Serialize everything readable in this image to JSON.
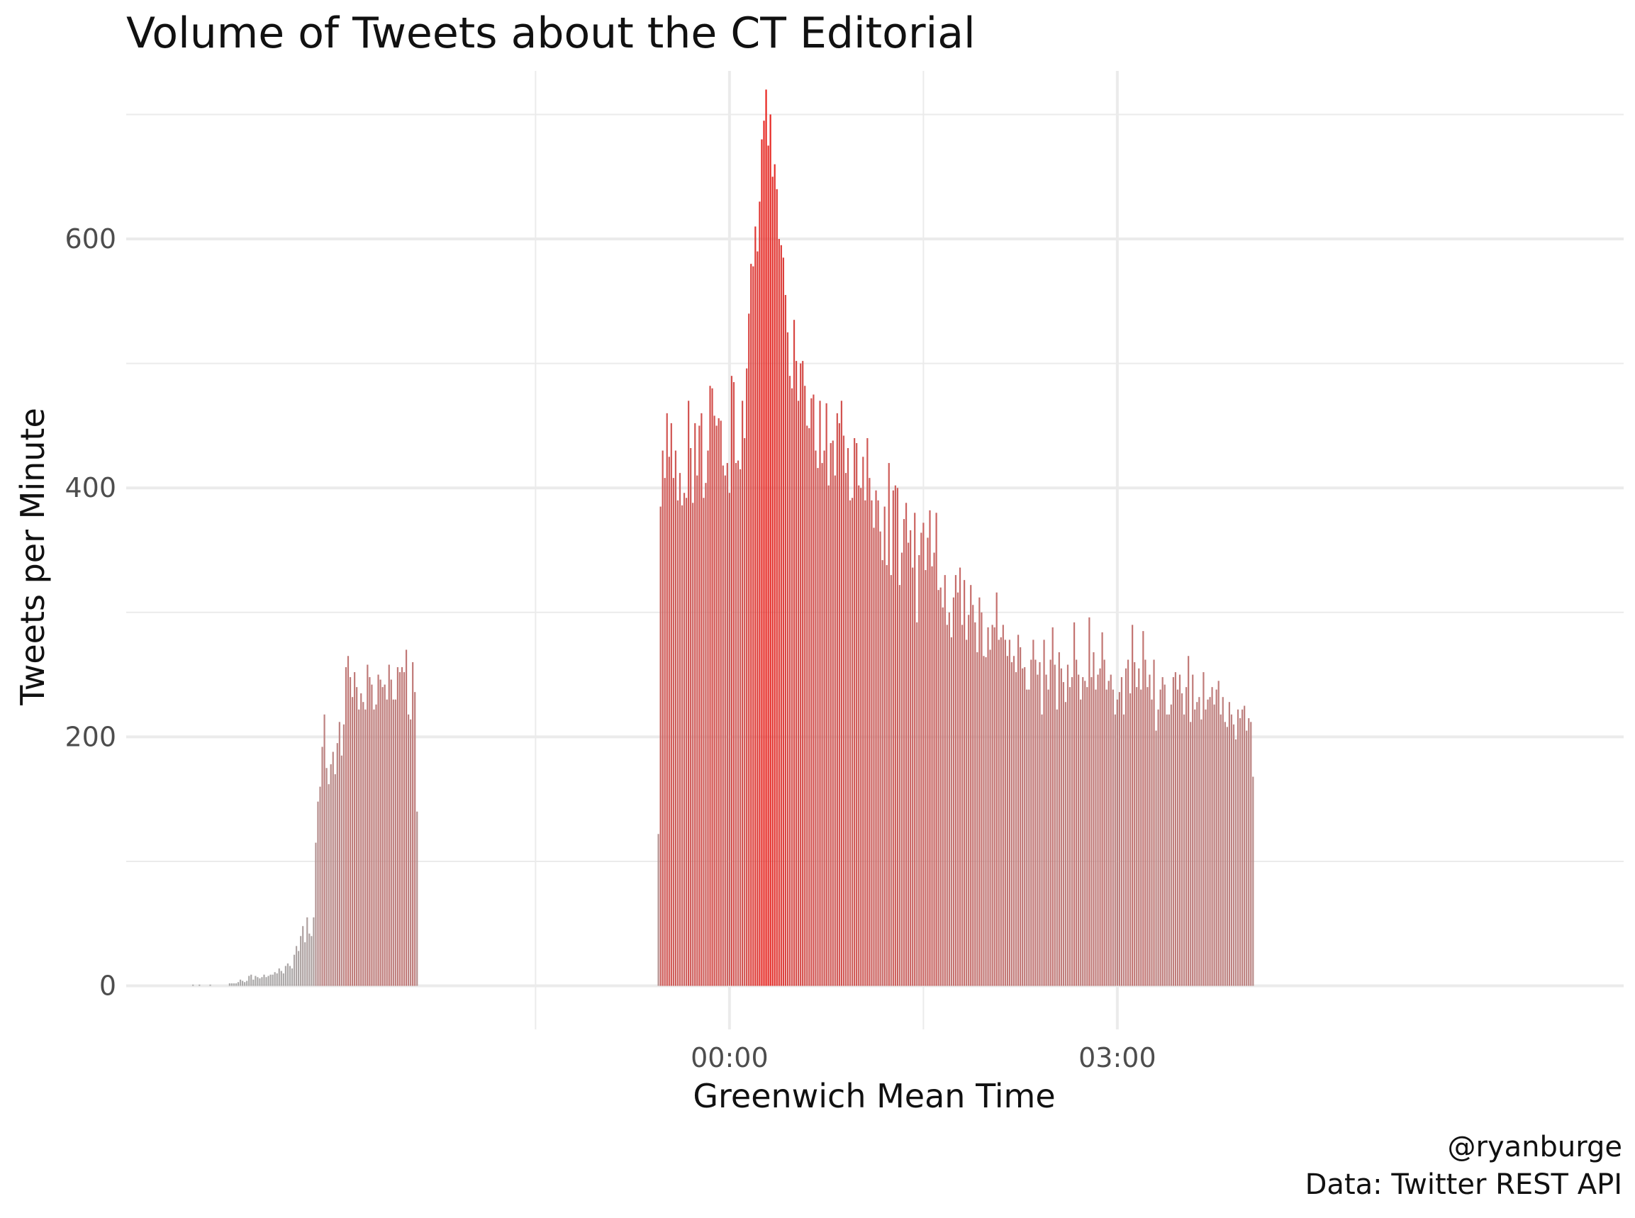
{
  "chart_data": {
    "type": "bar",
    "title": "Volume of Tweets about the CT Editorial",
    "xlabel": "Greenwich Mean Time",
    "ylabel": "Tweets per Minute",
    "x_unit": "minutes relative to 00:00 GMT",
    "x_range": [
      -280,
      415
    ],
    "ylim": [
      -35,
      735
    ],
    "y_ticks": [
      0,
      200,
      400,
      600
    ],
    "x_ticks": [
      {
        "minute": 0,
        "label": "00:00"
      },
      {
        "minute": 180,
        "label": "03:00"
      }
    ],
    "x_minor_gridlines": [
      -90,
      90
    ],
    "y_minor_gridlines": [
      100,
      300,
      500,
      700
    ],
    "color_low": "#aaaaaa",
    "color_high": "#e8231e",
    "segments": [
      {
        "start_minute": -249,
        "values": [
          1,
          0,
          0,
          1,
          0,
          0,
          0,
          0,
          1,
          0,
          0,
          0,
          0,
          0,
          0,
          0,
          0,
          2,
          2,
          2,
          2,
          3,
          5,
          4,
          3,
          4,
          8,
          9,
          5,
          8,
          7,
          6,
          7,
          9,
          7,
          8,
          9,
          9,
          11,
          10,
          14,
          12,
          10,
          16,
          18,
          16,
          14,
          25,
          32,
          28,
          40,
          48,
          35,
          55,
          42,
          40,
          55,
          115,
          148,
          160,
          192,
          218,
          175,
          162,
          178,
          188,
          170,
          195,
          212,
          185,
          210,
          256,
          265,
          248,
          232,
          252,
          240,
          222,
          235,
          228,
          222,
          258,
          248,
          242,
          222,
          226,
          250,
          246,
          240,
          242,
          230,
          258,
          246,
          230,
          230,
          256,
          252,
          256,
          252,
          270,
          218,
          214,
          260,
          236,
          140
        ]
      },
      {
        "start_minute": -33,
        "values": [
          122,
          385,
          430,
          408,
          460,
          425,
          452,
          408,
          430,
          390,
          412,
          386,
          396,
          392,
          470,
          432,
          388,
          452,
          410,
          450,
          460,
          392,
          404,
          430,
          482,
          480,
          458,
          450,
          456,
          454,
          418,
          410,
          420,
          396,
          490,
          485,
          420,
          422,
          415,
          470,
          440,
          496,
          540,
          580,
          578,
          610,
          590,
          630,
          680,
          695,
          720,
          675,
          700,
          650,
          660,
          640,
          600,
          595,
          585,
          555,
          525,
          490,
          480,
          535,
          502,
          470,
          500,
          502,
          482,
          450,
          448,
          472,
          475,
          430,
          416,
          470,
          420,
          430,
          468,
          402,
          436,
          438,
          410,
          460,
          452,
          470,
          442,
          412,
          432,
          390,
          392,
          440,
          436,
          402,
          400,
          425,
          390,
          440,
          408,
          390,
          368,
          398,
          390,
          365,
          342,
          385,
          338,
          420,
          330,
          398,
          402,
          400,
          322,
          348,
          375,
          388,
          356,
          366,
          336,
          380,
          292,
          346,
          364,
          372,
          334,
          360,
          382,
          337,
          348,
          380,
          318,
          320,
          304,
          330,
          290,
          300,
          280,
          312,
          330,
          316,
          336,
          290,
          326,
          278,
          298,
          322,
          306,
          292,
          268,
          312,
          300,
          265,
          264,
          288,
          270,
          290,
          288,
          316,
          278,
          280,
          290,
          278,
          265,
          278,
          260,
          265,
          252,
          282,
          272,
          255,
          256,
          238,
          238,
          262,
          278,
          262,
          250,
          260,
          218,
          278,
          250,
          238,
          262,
          288,
          258,
          222,
          268,
          255,
          244,
          228,
          258,
          240,
          248,
          292,
          262,
          250,
          230,
          248,
          245,
          240,
          296,
          248,
          268,
          238,
          250,
          255,
          284,
          262,
          238,
          245,
          250,
          238,
          218,
          230,
          236,
          248,
          218,
          255,
          262,
          235,
          290,
          260,
          240,
          255,
          238,
          285,
          262,
          240,
          250,
          230,
          262,
          205,
          222,
          238,
          248,
          242,
          218,
          218,
          226,
          248,
          252,
          238,
          250,
          235,
          218,
          240,
          265,
          212,
          250,
          222,
          228,
          232,
          214,
          252,
          222,
          230,
          232,
          240,
          226,
          238,
          245,
          218,
          232,
          212,
          208,
          228,
          218,
          210,
          198,
          222,
          215,
          222,
          225,
          205,
          215,
          212,
          168
        ]
      }
    ]
  },
  "caption": {
    "author": "@ryanburge",
    "source": "Data: Twitter REST API"
  }
}
